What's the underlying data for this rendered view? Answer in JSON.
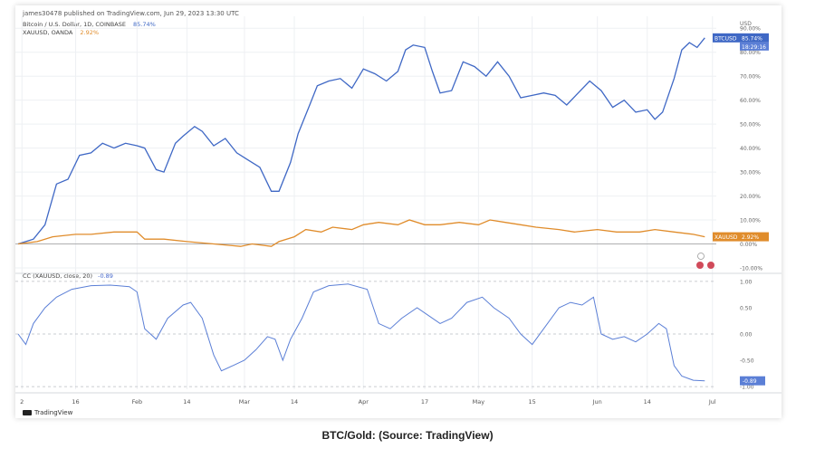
{
  "header": "james30478 published on TradingView.com, Jun 29, 2023 13:30 UTC",
  "legend": [
    {
      "text": "Bitcoin / U.S. Dollar, 1D, COINBASE",
      "value": "85.74%",
      "color": "#3f68c5"
    },
    {
      "text": "XAUUSD, OANDA",
      "value": "2.92%",
      "color": "#e08c2b"
    }
  ],
  "cc_label": "CC (XAUUSD, close, 20)",
  "cc_value": "-0.89",
  "caption": "BTC/Gold: (Source: TradingView)",
  "footer_brand": "TradingView",
  "colors": {
    "btc": "#3f68c5",
    "gold": "#e08c2b",
    "cc": "#5b7fd6"
  },
  "chart_data": [
    {
      "type": "line",
      "y_unit": "percent",
      "ylim": [
        -10,
        95
      ],
      "currency_label": "USD",
      "y_ticks": [
        "90.00%",
        "80.00%",
        "70.00%",
        "60.00%",
        "50.00%",
        "40.00%",
        "30.00%",
        "20.00%",
        "10.00%",
        "0.00%",
        "-10.00%"
      ],
      "x_ticks": [
        {
          "label": "2",
          "date": "2023-01-02"
        },
        {
          "label": "16",
          "date": "2023-01-16"
        },
        {
          "label": "Feb",
          "date": "2023-02-01"
        },
        {
          "label": "14",
          "date": "2023-02-14"
        },
        {
          "label": "Mar",
          "date": "2023-03-01"
        },
        {
          "label": "14",
          "date": "2023-03-14"
        },
        {
          "label": "Apr",
          "date": "2023-04-01"
        },
        {
          "label": "17",
          "date": "2023-04-17"
        },
        {
          "label": "May",
          "date": "2023-05-01"
        },
        {
          "label": "15",
          "date": "2023-05-15"
        },
        {
          "label": "Jun",
          "date": "2023-06-01"
        },
        {
          "label": "14",
          "date": "2023-06-14"
        },
        {
          "label": "Jul",
          "date": "2023-07-01"
        }
      ],
      "series": [
        {
          "name": "BTCUSD",
          "last_label": "85.74%",
          "last_label_2": "18:29:16",
          "points": [
            [
              "2023-01-01",
              0
            ],
            [
              "2023-01-05",
              2
            ],
            [
              "2023-01-08",
              8
            ],
            [
              "2023-01-11",
              25
            ],
            [
              "2023-01-14",
              27
            ],
            [
              "2023-01-17",
              37
            ],
            [
              "2023-01-20",
              38
            ],
            [
              "2023-01-23",
              42
            ],
            [
              "2023-01-26",
              40
            ],
            [
              "2023-01-29",
              42
            ],
            [
              "2023-02-01",
              41
            ],
            [
              "2023-02-03",
              40
            ],
            [
              "2023-02-06",
              31
            ],
            [
              "2023-02-08",
              30
            ],
            [
              "2023-02-11",
              42
            ],
            [
              "2023-02-13",
              45
            ],
            [
              "2023-02-16",
              49
            ],
            [
              "2023-02-18",
              47
            ],
            [
              "2023-02-21",
              41
            ],
            [
              "2023-02-24",
              44
            ],
            [
              "2023-02-27",
              38
            ],
            [
              "2023-03-02",
              35
            ],
            [
              "2023-03-05",
              32
            ],
            [
              "2023-03-08",
              22
            ],
            [
              "2023-03-10",
              22
            ],
            [
              "2023-03-13",
              34
            ],
            [
              "2023-03-15",
              46
            ],
            [
              "2023-03-18",
              58
            ],
            [
              "2023-03-20",
              66
            ],
            [
              "2023-03-23",
              68
            ],
            [
              "2023-03-26",
              69
            ],
            [
              "2023-03-29",
              65
            ],
            [
              "2023-04-01",
              73
            ],
            [
              "2023-04-04",
              71
            ],
            [
              "2023-04-07",
              68
            ],
            [
              "2023-04-10",
              72
            ],
            [
              "2023-04-12",
              81
            ],
            [
              "2023-04-14",
              83
            ],
            [
              "2023-04-17",
              82
            ],
            [
              "2023-04-19",
              72
            ],
            [
              "2023-04-21",
              63
            ],
            [
              "2023-04-24",
              64
            ],
            [
              "2023-04-27",
              76
            ],
            [
              "2023-04-30",
              74
            ],
            [
              "2023-05-03",
              70
            ],
            [
              "2023-05-06",
              76
            ],
            [
              "2023-05-09",
              70
            ],
            [
              "2023-05-12",
              61
            ],
            [
              "2023-05-15",
              62
            ],
            [
              "2023-05-18",
              63
            ],
            [
              "2023-05-21",
              62
            ],
            [
              "2023-05-24",
              58
            ],
            [
              "2023-05-27",
              63
            ],
            [
              "2023-05-30",
              68
            ],
            [
              "2023-06-02",
              64
            ],
            [
              "2023-06-05",
              57
            ],
            [
              "2023-06-08",
              60
            ],
            [
              "2023-06-11",
              55
            ],
            [
              "2023-06-14",
              56
            ],
            [
              "2023-06-16",
              52
            ],
            [
              "2023-06-18",
              55
            ],
            [
              "2023-06-21",
              69
            ],
            [
              "2023-06-23",
              81
            ],
            [
              "2023-06-25",
              84
            ],
            [
              "2023-06-27",
              82
            ],
            [
              "2023-06-29",
              86
            ]
          ]
        },
        {
          "name": "XAUUSD",
          "last_label": "2.92%",
          "points": [
            [
              "2023-01-01",
              0
            ],
            [
              "2023-01-06",
              1
            ],
            [
              "2023-01-10",
              3
            ],
            [
              "2023-01-16",
              4
            ],
            [
              "2023-01-20",
              4
            ],
            [
              "2023-01-26",
              5
            ],
            [
              "2023-02-01",
              5
            ],
            [
              "2023-02-03",
              2
            ],
            [
              "2023-02-08",
              2
            ],
            [
              "2023-02-14",
              1
            ],
            [
              "2023-02-21",
              0
            ],
            [
              "2023-02-28",
              -1
            ],
            [
              "2023-03-03",
              0
            ],
            [
              "2023-03-08",
              -1
            ],
            [
              "2023-03-10",
              1
            ],
            [
              "2023-03-14",
              3
            ],
            [
              "2023-03-17",
              6
            ],
            [
              "2023-03-21",
              5
            ],
            [
              "2023-03-24",
              7
            ],
            [
              "2023-03-29",
              6
            ],
            [
              "2023-04-01",
              8
            ],
            [
              "2023-04-05",
              9
            ],
            [
              "2023-04-10",
              8
            ],
            [
              "2023-04-13",
              10
            ],
            [
              "2023-04-17",
              8
            ],
            [
              "2023-04-21",
              8
            ],
            [
              "2023-04-26",
              9
            ],
            [
              "2023-05-01",
              8
            ],
            [
              "2023-05-04",
              10
            ],
            [
              "2023-05-08",
              9
            ],
            [
              "2023-05-12",
              8
            ],
            [
              "2023-05-16",
              7
            ],
            [
              "2023-05-22",
              6
            ],
            [
              "2023-05-26",
              5
            ],
            [
              "2023-06-01",
              6
            ],
            [
              "2023-06-06",
              5
            ],
            [
              "2023-06-12",
              5
            ],
            [
              "2023-06-16",
              6
            ],
            [
              "2023-06-21",
              5
            ],
            [
              "2023-06-26",
              4
            ],
            [
              "2023-06-29",
              3
            ]
          ]
        }
      ]
    },
    {
      "type": "line",
      "title": "CC (XAUUSD, close, 20)",
      "ylim": [
        -1.05,
        1.05
      ],
      "y_ticks": [
        "1.00",
        "0.50",
        "0.00",
        "-0.50",
        "-1.00"
      ],
      "series": [
        {
          "name": "CC",
          "last_label": "-0.89",
          "points": [
            [
              "2023-01-01",
              0.0
            ],
            [
              "2023-01-03",
              -0.2
            ],
            [
              "2023-01-05",
              0.2
            ],
            [
              "2023-01-08",
              0.5
            ],
            [
              "2023-01-11",
              0.7
            ],
            [
              "2023-01-15",
              0.85
            ],
            [
              "2023-01-20",
              0.92
            ],
            [
              "2023-01-25",
              0.93
            ],
            [
              "2023-01-30",
              0.9
            ],
            [
              "2023-02-01",
              0.8
            ],
            [
              "2023-02-03",
              0.1
            ],
            [
              "2023-02-06",
              -0.1
            ],
            [
              "2023-02-09",
              0.3
            ],
            [
              "2023-02-13",
              0.55
            ],
            [
              "2023-02-15",
              0.6
            ],
            [
              "2023-02-18",
              0.3
            ],
            [
              "2023-02-21",
              -0.4
            ],
            [
              "2023-02-23",
              -0.7
            ],
            [
              "2023-02-26",
              -0.6
            ],
            [
              "2023-03-01",
              -0.5
            ],
            [
              "2023-03-04",
              -0.3
            ],
            [
              "2023-03-07",
              -0.05
            ],
            [
              "2023-03-09",
              -0.1
            ],
            [
              "2023-03-11",
              -0.5
            ],
            [
              "2023-03-13",
              -0.1
            ],
            [
              "2023-03-16",
              0.3
            ],
            [
              "2023-03-19",
              0.8
            ],
            [
              "2023-03-23",
              0.92
            ],
            [
              "2023-03-28",
              0.95
            ],
            [
              "2023-04-02",
              0.85
            ],
            [
              "2023-04-05",
              0.2
            ],
            [
              "2023-04-08",
              0.1
            ],
            [
              "2023-04-11",
              0.3
            ],
            [
              "2023-04-15",
              0.5
            ],
            [
              "2023-04-18",
              0.35
            ],
            [
              "2023-04-21",
              0.2
            ],
            [
              "2023-04-24",
              0.3
            ],
            [
              "2023-04-28",
              0.6
            ],
            [
              "2023-05-02",
              0.7
            ],
            [
              "2023-05-05",
              0.5
            ],
            [
              "2023-05-09",
              0.3
            ],
            [
              "2023-05-12",
              0.0
            ],
            [
              "2023-05-15",
              -0.2
            ],
            [
              "2023-05-18",
              0.1
            ],
            [
              "2023-05-22",
              0.5
            ],
            [
              "2023-05-25",
              0.6
            ],
            [
              "2023-05-28",
              0.55
            ],
            [
              "2023-05-31",
              0.7
            ],
            [
              "2023-06-02",
              0.0
            ],
            [
              "2023-06-05",
              -0.1
            ],
            [
              "2023-06-08",
              -0.05
            ],
            [
              "2023-06-11",
              -0.15
            ],
            [
              "2023-06-14",
              0.0
            ],
            [
              "2023-06-17",
              0.2
            ],
            [
              "2023-06-19",
              0.1
            ],
            [
              "2023-06-21",
              -0.6
            ],
            [
              "2023-06-23",
              -0.8
            ],
            [
              "2023-06-26",
              -0.88
            ],
            [
              "2023-06-29",
              -0.89
            ]
          ]
        }
      ]
    }
  ]
}
